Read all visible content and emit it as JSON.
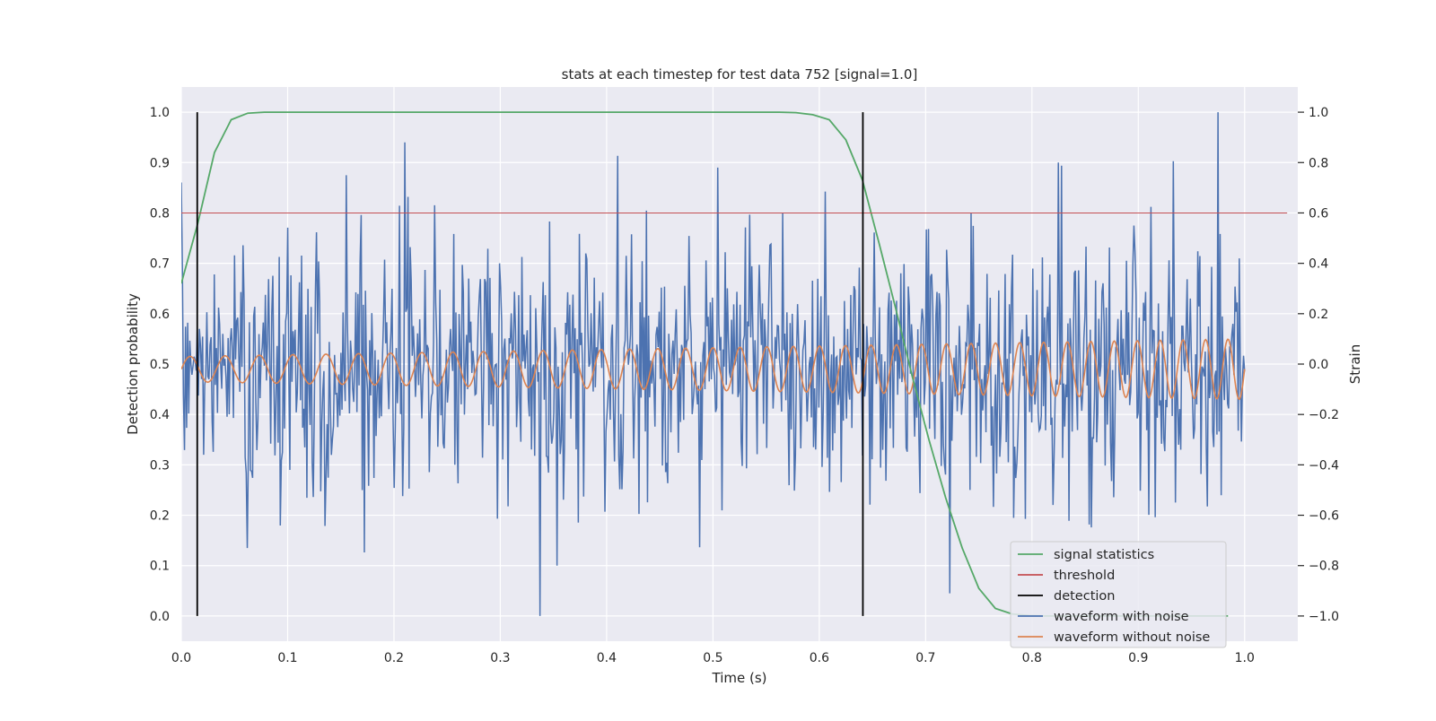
{
  "chart_data": {
    "type": "line",
    "title": "stats at each timestep for test data 752 [signal=1.0]",
    "xlabel": "Time (s)",
    "ylabel": "Detection probability",
    "y2label": "Strain",
    "xlim": [
      0.0,
      1.05
    ],
    "ylim": [
      -0.05,
      1.05
    ],
    "y2lim": [
      -1.1,
      1.1
    ],
    "grid": true,
    "legend_position": "lower-right",
    "x_ticks": [
      "0.0",
      "0.1",
      "0.2",
      "0.3",
      "0.4",
      "0.5",
      "0.6",
      "0.7",
      "0.8",
      "0.9",
      "1.0"
    ],
    "y_ticks": [
      "0.0",
      "0.1",
      "0.2",
      "0.3",
      "0.4",
      "0.5",
      "0.6",
      "0.7",
      "0.8",
      "0.9",
      "1.0"
    ],
    "y2_ticks": [
      "−1.0",
      "−0.8",
      "−0.6",
      "−0.4",
      "−0.2",
      "0.0",
      "0.2",
      "0.4",
      "0.6",
      "0.8",
      "1.0"
    ],
    "colors": {
      "signal": "#55a868",
      "threshold": "#c44e52",
      "detection": "#000000",
      "noisy": "#4c72b0",
      "clean": "#dd8452",
      "plot_bg": "#eaeaf2",
      "grid": "#ffffff"
    },
    "legend": [
      "signal statistics",
      "threshold",
      "detection",
      "waveform with noise",
      "waveform without noise"
    ],
    "series": {
      "signal_statistics": {
        "name": "signal statistics",
        "axis": "left",
        "x": [
          0.0,
          0.0156,
          0.0312,
          0.0469,
          0.0625,
          0.0781,
          0.0938,
          0.1094,
          0.125,
          0.1406,
          0.1562,
          0.1719,
          0.1875,
          0.2031,
          0.2188,
          0.2344,
          0.25,
          0.2656,
          0.2812,
          0.2969,
          0.3125,
          0.3281,
          0.3438,
          0.3594,
          0.375,
          0.3906,
          0.4062,
          0.4219,
          0.4375,
          0.4531,
          0.4688,
          0.4844,
          0.5,
          0.5156,
          0.5312,
          0.5469,
          0.5625,
          0.5781,
          0.5938,
          0.6094,
          0.625,
          0.6406,
          0.6562,
          0.6719,
          0.6875,
          0.7031,
          0.7188,
          0.7344,
          0.75,
          0.7656,
          0.7812,
          0.7969,
          0.8125,
          0.8281,
          0.8438,
          0.8594,
          0.875,
          0.8906,
          0.9062,
          0.9219,
          0.9375,
          0.9531,
          0.9688,
          0.9844
        ],
        "y": [
          0.66,
          0.78,
          0.92,
          0.985,
          0.998,
          1.0,
          1.0,
          1.0,
          1.0,
          1.0,
          1.0,
          1.0,
          1.0,
          1.0,
          1.0,
          1.0,
          1.0,
          1.0,
          1.0,
          1.0,
          1.0,
          1.0,
          1.0,
          1.0,
          1.0,
          1.0,
          1.0,
          1.0,
          1.0,
          1.0,
          1.0,
          1.0,
          1.0,
          1.0,
          1.0,
          1.0,
          1.0,
          0.999,
          0.995,
          0.985,
          0.945,
          0.865,
          0.74,
          0.61,
          0.475,
          0.35,
          0.235,
          0.135,
          0.055,
          0.015,
          0.004,
          0.001,
          0.0,
          0.0,
          0.0,
          0.0,
          0.0,
          0.0,
          0.0,
          0.0,
          0.0,
          0.0,
          0.0,
          0.0
        ]
      },
      "threshold": {
        "name": "threshold",
        "axis": "left",
        "x": [
          0.0,
          1.04
        ],
        "y": [
          0.8,
          0.8
        ]
      },
      "detections": {
        "name": "detection",
        "axis": "left",
        "x": [
          0.015,
          0.641
        ],
        "y_range": [
          0.0,
          1.0
        ]
      },
      "waveform_with_noise": {
        "name": "waveform with noise",
        "axis": "right",
        "x_range": [
          0.0,
          1.0
        ],
        "n_points": 1000,
        "y_range": [
          -1.0,
          1.0
        ],
        "peaks": [
          {
            "x": 0.155,
            "y": 0.75
          },
          {
            "x": 0.21,
            "y": 0.88
          },
          {
            "x": 0.505,
            "y": 0.78
          },
          {
            "x": 0.825,
            "y": 0.8
          },
          {
            "x": 0.975,
            "y": 1.0
          }
        ],
        "troughs": [
          {
            "x": 0.062,
            "y": -0.73
          },
          {
            "x": 0.337,
            "y": -1.0
          },
          {
            "x": 0.353,
            "y": -0.8
          },
          {
            "x": 0.723,
            "y": -0.91
          }
        ]
      },
      "waveform_without_noise": {
        "name": "waveform without noise",
        "axis": "right",
        "x_range": [
          0.0,
          1.0
        ],
        "amplitude_start": 0.05,
        "amplitude_end": 0.12,
        "frequency_start_hz": 30,
        "frequency_end_hz": 48
      }
    }
  }
}
